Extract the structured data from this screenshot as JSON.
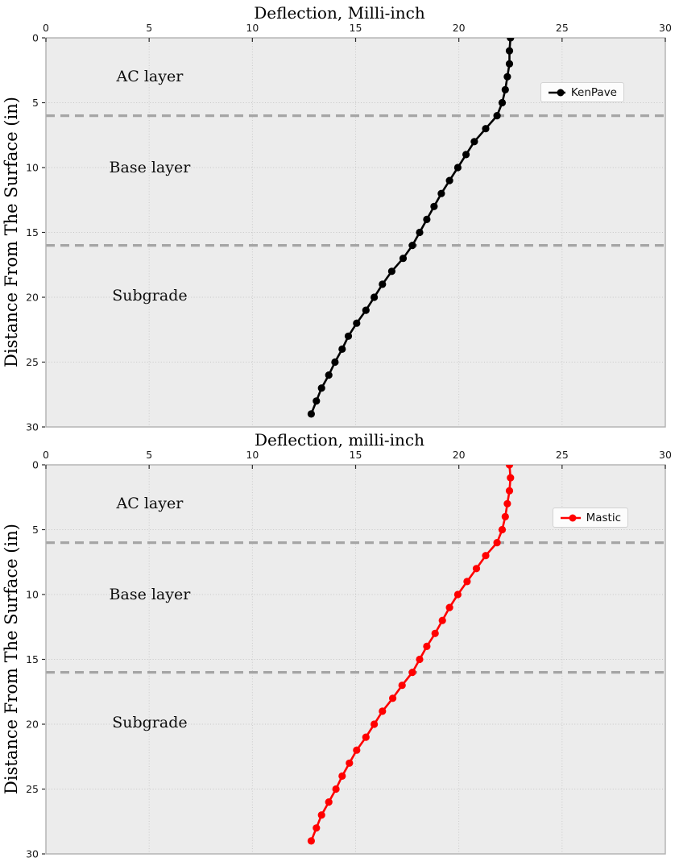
{
  "figure": {
    "background": "#ffffff",
    "plot_background": "#ececec",
    "grid_color": "#c6c6c6",
    "border_color": "#b0b0b0",
    "boundary_line_color": "#a5a5a5",
    "tick_color": "#2b2b2b"
  },
  "chart_data": [
    {
      "type": "line",
      "title": "Deflection, Milli-inch",
      "ylabel": "Distance From The Surface (in)",
      "x_axis_position": "top",
      "y_axis_inverted": true,
      "xlim": [
        0,
        30
      ],
      "ylim": [
        0,
        30
      ],
      "x_ticks": [
        0,
        5,
        10,
        15,
        20,
        25,
        30
      ],
      "y_ticks": [
        0,
        5,
        10,
        15,
        20,
        25,
        30
      ],
      "grid": true,
      "layer_boundaries_depth": [
        6,
        16
      ],
      "annotations": [
        {
          "text": "AC layer",
          "x": 5.03,
          "y": 3.0
        },
        {
          "text": "Base layer",
          "x": 5.03,
          "y": 10.0
        },
        {
          "text": "Subgrade",
          "x": 5.03,
          "y": 19.85
        }
      ],
      "legend": {
        "label": "KenPave",
        "position": "right-upper"
      },
      "series": [
        {
          "name": "KenPave",
          "color": "#000000",
          "marker": "circle",
          "depth_in": [
            0,
            1,
            2,
            3,
            4,
            5,
            6,
            7,
            8,
            9,
            10,
            11,
            12,
            13,
            14,
            15,
            16,
            17,
            18,
            19,
            20,
            21,
            22,
            23,
            24,
            25,
            26,
            27,
            28,
            29
          ],
          "deflection_milli_inch": [
            22.5,
            22.45,
            22.45,
            22.35,
            22.25,
            22.1,
            21.85,
            21.3,
            20.75,
            20.35,
            19.95,
            19.55,
            19.15,
            18.8,
            18.45,
            18.1,
            17.75,
            17.3,
            16.75,
            16.3,
            15.9,
            15.5,
            15.05,
            14.65,
            14.35,
            14.0,
            13.7,
            13.35,
            13.1,
            12.85
          ]
        }
      ]
    },
    {
      "type": "line",
      "title": "Deflection, milli-inch",
      "ylabel": "Distance From The Surface (in)",
      "x_axis_position": "top",
      "y_axis_inverted": true,
      "xlim": [
        0,
        30
      ],
      "ylim": [
        0,
        30
      ],
      "x_ticks": [
        0,
        5,
        10,
        15,
        20,
        25,
        30
      ],
      "y_ticks": [
        0,
        5,
        10,
        15,
        20,
        25,
        30
      ],
      "grid": true,
      "layer_boundaries_depth": [
        6,
        16
      ],
      "annotations": [
        {
          "text": "AC layer",
          "x": 5.03,
          "y": 3.0
        },
        {
          "text": "Base layer",
          "x": 5.03,
          "y": 10.0
        },
        {
          "text": "Subgrade",
          "x": 5.03,
          "y": 19.85
        }
      ],
      "legend": {
        "label": "Mastic",
        "position": "right-upper"
      },
      "series": [
        {
          "name": "Mastic",
          "color": "#ff0000",
          "marker": "circle",
          "depth_in": [
            0,
            1,
            2,
            3,
            4,
            5,
            6,
            7,
            8,
            9,
            10,
            11,
            12,
            13,
            14,
            15,
            16,
            17,
            18,
            19,
            20,
            21,
            22,
            23,
            24,
            25,
            26,
            27,
            28,
            29
          ],
          "deflection_milli_inch": [
            22.45,
            22.5,
            22.45,
            22.35,
            22.25,
            22.1,
            21.85,
            21.3,
            20.85,
            20.4,
            19.95,
            19.55,
            19.2,
            18.85,
            18.45,
            18.1,
            17.75,
            17.25,
            16.8,
            16.3,
            15.9,
            15.5,
            15.05,
            14.7,
            14.35,
            14.05,
            13.7,
            13.35,
            13.1,
            12.85
          ]
        }
      ]
    }
  ]
}
